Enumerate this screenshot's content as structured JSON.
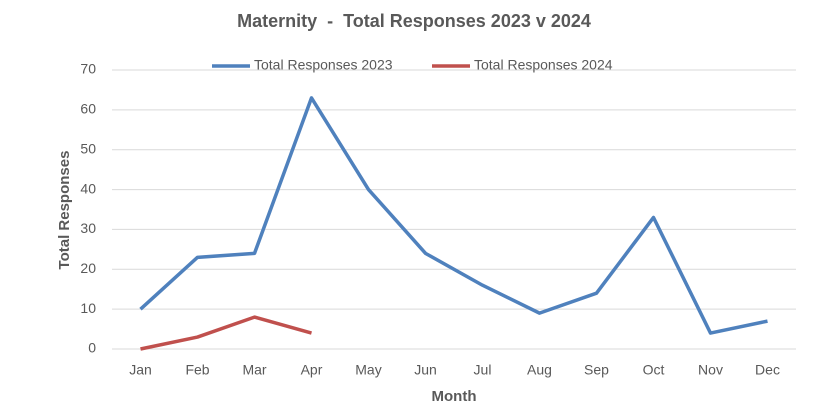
{
  "chart_data": {
    "type": "line",
    "title": "Maternity  -  Total Responses 2023 v 2024",
    "x_label": "Month",
    "y_label": "Total Responses",
    "categories": [
      "Jan",
      "Feb",
      "Mar",
      "Apr",
      "May",
      "Jun",
      "Jul",
      "Aug",
      "Sep",
      "Oct",
      "Nov",
      "Dec"
    ],
    "series": [
      {
        "name": "Total Responses 2023",
        "color": "#4f81bd",
        "values": [
          10,
          23,
          24,
          63,
          40,
          24,
          16,
          9,
          14,
          33,
          4,
          7
        ]
      },
      {
        "name": "Total Responses 2024",
        "color": "#c0504d",
        "values": [
          0,
          3,
          8,
          4,
          null,
          null,
          null,
          null,
          null,
          null,
          null,
          null
        ]
      }
    ],
    "ylim": [
      0,
      70
    ],
    "yticks": [
      0,
      10,
      20,
      30,
      40,
      50,
      60,
      70
    ],
    "grid": true,
    "legend": "top"
  }
}
